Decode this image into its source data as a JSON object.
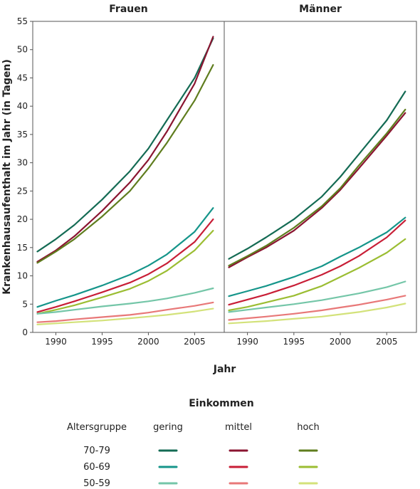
{
  "chart_data": {
    "type": "line",
    "ylabel": "Krankenhausaufenthalt im Jahr (in Tagen)",
    "xlabel": "Jahr",
    "ylim": [
      0,
      55
    ],
    "xlim": [
      1987.5,
      2008.2
    ],
    "yticks": [
      "0",
      "5",
      "10",
      "15",
      "20",
      "25",
      "30",
      "35",
      "40",
      "45",
      "50",
      "55"
    ],
    "xticks": [
      "1990",
      "1995",
      "2000",
      "2005"
    ],
    "grid": false,
    "legend": {
      "title": "Einkommen",
      "row_header": "Altersgruppe",
      "columns": [
        "gering",
        "mittel",
        "hoch"
      ],
      "rows": [
        "70-79",
        "60-69",
        "50-59"
      ],
      "placement": "bottom"
    },
    "panels": [
      {
        "title": "Frauen",
        "series": [
          {
            "age": "70-79",
            "income": "gering",
            "color": "#146b54",
            "x": [
              1988,
              1990,
              1992,
              1995,
              1998,
              2000,
              2002,
              2005,
              2007
            ],
            "y": [
              14.3,
              16.5,
              19.0,
              23.5,
              28.5,
              32.5,
              37.5,
              45.0,
              52.0
            ]
          },
          {
            "age": "70-79",
            "income": "mittel",
            "color": "#8a1531",
            "x": [
              1988,
              1990,
              1992,
              1995,
              1998,
              2000,
              2002,
              2005,
              2007
            ],
            "y": [
              12.5,
              14.5,
              17.0,
              21.5,
              26.5,
              30.5,
              35.5,
              44.0,
              52.3
            ]
          },
          {
            "age": "70-79",
            "income": "hoch",
            "color": "#5f7d1e",
            "x": [
              1988,
              1990,
              1992,
              1995,
              1998,
              2000,
              2002,
              2005,
              2007
            ],
            "y": [
              12.3,
              14.3,
              16.5,
              20.5,
              25.0,
              29.0,
              33.5,
              41.0,
              47.3
            ]
          },
          {
            "age": "60-69",
            "income": "gering",
            "color": "#15958a",
            "x": [
              1988,
              1990,
              1992,
              1995,
              1998,
              2000,
              2002,
              2005,
              2007
            ],
            "y": [
              4.5,
              5.6,
              6.6,
              8.3,
              10.2,
              11.8,
              13.8,
              17.8,
              22.0
            ]
          },
          {
            "age": "60-69",
            "income": "mittel",
            "color": "#c81e36",
            "x": [
              1988,
              1990,
              1992,
              1995,
              1998,
              2000,
              2002,
              2005,
              2007
            ],
            "y": [
              3.6,
              4.5,
              5.5,
              7.1,
              8.8,
              10.3,
              12.2,
              16.0,
              20.0
            ]
          },
          {
            "age": "60-69",
            "income": "hoch",
            "color": "#9bbd32",
            "x": [
              1988,
              1990,
              1992,
              1995,
              1998,
              2000,
              2002,
              2005,
              2007
            ],
            "y": [
              3.3,
              4.0,
              4.8,
              6.2,
              7.7,
              9.1,
              10.9,
              14.5,
              18.0
            ]
          },
          {
            "age": "50-59",
            "income": "gering",
            "color": "#74c6a8",
            "x": [
              1988,
              1990,
              1992,
              1995,
              1998,
              2000,
              2002,
              2005,
              2007
            ],
            "y": [
              3.3,
              3.6,
              4.0,
              4.6,
              5.1,
              5.5,
              6.0,
              7.0,
              7.8
            ]
          },
          {
            "age": "50-59",
            "income": "mittel",
            "color": "#e87878",
            "x": [
              1988,
              1990,
              1992,
              1995,
              1998,
              2000,
              2002,
              2005,
              2007
            ],
            "y": [
              1.8,
              2.0,
              2.3,
              2.7,
              3.1,
              3.5,
              4.0,
              4.7,
              5.3
            ]
          },
          {
            "age": "50-59",
            "income": "hoch",
            "color": "#d3e27a",
            "x": [
              1988,
              1990,
              1992,
              1995,
              1998,
              2000,
              2002,
              2005,
              2007
            ],
            "y": [
              1.4,
              1.6,
              1.8,
              2.1,
              2.5,
              2.8,
              3.1,
              3.7,
              4.2
            ]
          }
        ]
      },
      {
        "title": "Männer",
        "series": [
          {
            "age": "70-79",
            "income": "gering",
            "color": "#146b54",
            "x": [
              1988,
              1990,
              1992,
              1995,
              1998,
              2000,
              2002,
              2005,
              2007
            ],
            "y": [
              13.0,
              14.8,
              16.8,
              20.0,
              24.0,
              27.5,
              31.5,
              37.5,
              42.6
            ]
          },
          {
            "age": "70-79",
            "income": "mittel",
            "color": "#8a1531",
            "x": [
              1988,
              1990,
              1992,
              1995,
              1998,
              2000,
              2002,
              2005,
              2007
            ],
            "y": [
              11.5,
              13.3,
              15.0,
              18.0,
              22.0,
              25.2,
              29.0,
              34.8,
              38.8
            ]
          },
          {
            "age": "70-79",
            "income": "hoch",
            "color": "#5f7d1e",
            "x": [
              1988,
              1990,
              1992,
              1995,
              1998,
              2000,
              2002,
              2005,
              2007
            ],
            "y": [
              11.8,
              13.5,
              15.3,
              18.5,
              22.3,
              25.5,
              29.5,
              35.2,
              39.4
            ]
          },
          {
            "age": "60-69",
            "income": "gering",
            "color": "#15958a",
            "x": [
              1988,
              1990,
              1992,
              1995,
              1998,
              2000,
              2002,
              2005,
              2007
            ],
            "y": [
              6.4,
              7.3,
              8.2,
              9.8,
              11.7,
              13.4,
              15.0,
              17.7,
              20.3
            ]
          },
          {
            "age": "60-69",
            "income": "mittel",
            "color": "#c81e36",
            "x": [
              1988,
              1990,
              1992,
              1995,
              1998,
              2000,
              2002,
              2005,
              2007
            ],
            "y": [
              4.9,
              5.8,
              6.7,
              8.3,
              10.2,
              11.7,
              13.5,
              16.8,
              19.8
            ]
          },
          {
            "age": "60-69",
            "income": "hoch",
            "color": "#9bbd32",
            "x": [
              1988,
              1990,
              1992,
              1995,
              1998,
              2000,
              2002,
              2005,
              2007
            ],
            "y": [
              3.9,
              4.5,
              5.3,
              6.5,
              8.2,
              9.8,
              11.4,
              14.1,
              16.5
            ]
          },
          {
            "age": "50-59",
            "income": "gering",
            "color": "#74c6a8",
            "x": [
              1988,
              1990,
              1992,
              1995,
              1998,
              2000,
              2002,
              2005,
              2007
            ],
            "y": [
              3.6,
              4.0,
              4.4,
              5.0,
              5.7,
              6.3,
              6.9,
              8.0,
              9.0
            ]
          },
          {
            "age": "50-59",
            "income": "mittel",
            "color": "#e87878",
            "x": [
              1988,
              1990,
              1992,
              1995,
              1998,
              2000,
              2002,
              2005,
              2007
            ],
            "y": [
              2.2,
              2.5,
              2.8,
              3.3,
              3.9,
              4.4,
              4.9,
              5.8,
              6.5
            ]
          },
          {
            "age": "50-59",
            "income": "hoch",
            "color": "#d3e27a",
            "x": [
              1988,
              1990,
              1992,
              1995,
              1998,
              2000,
              2002,
              2005,
              2007
            ],
            "y": [
              1.6,
              1.8,
              2.0,
              2.4,
              2.8,
              3.2,
              3.6,
              4.4,
              5.1
            ]
          }
        ]
      }
    ]
  }
}
